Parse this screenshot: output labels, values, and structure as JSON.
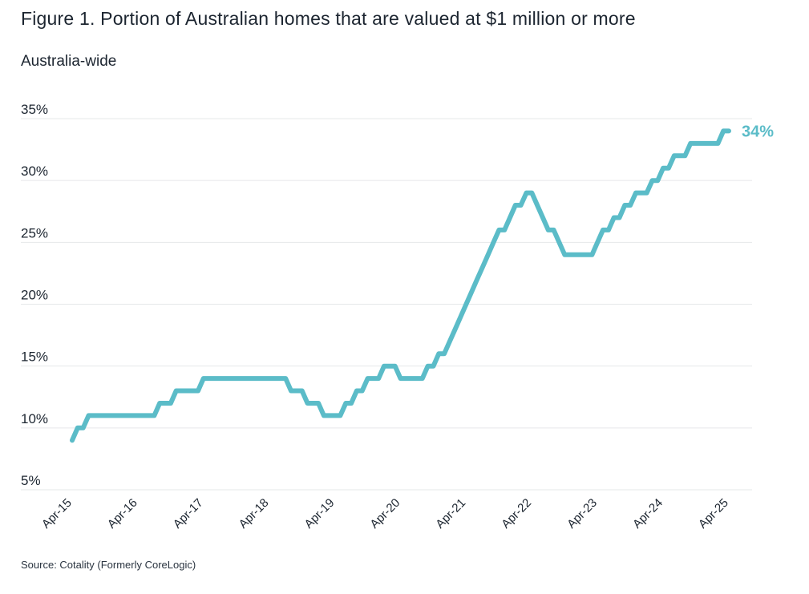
{
  "title": "Figure 1. Portion of Australian homes that are valued at $1 million or more",
  "subtitle": "Australia-wide",
  "source": "Source: Cotality (Formerly CoreLogic)",
  "colors": {
    "series": "#5bbcc8",
    "grid": "#e6e8ea",
    "text": "#1c2530"
  },
  "chart_data": {
    "type": "line",
    "title": "Figure 1. Portion of Australian homes that are valued at $1 million or more",
    "subtitle": "Australia-wide",
    "xlabel": "",
    "ylabel": "",
    "ylim": [
      5,
      35
    ],
    "yticks": [
      5,
      10,
      15,
      20,
      25,
      30,
      35
    ],
    "ytick_labels": [
      "5%",
      "10%",
      "15%",
      "20%",
      "25%",
      "30%",
      "35%"
    ],
    "xlim": [
      0,
      121
    ],
    "xticks": [
      0,
      12,
      24,
      36,
      48,
      60,
      72,
      84,
      96,
      108,
      120
    ],
    "xtick_labels": [
      "Apr-15",
      "Apr-16",
      "Apr-17",
      "Apr-18",
      "Apr-19",
      "Apr-20",
      "Apr-21",
      "Apr-22",
      "Apr-23",
      "Apr-24",
      "Apr-25"
    ],
    "grid": true,
    "end_label": "34%",
    "series": [
      {
        "name": "Australia-wide",
        "x_unit": "months since Apr-15",
        "points": [
          [
            0,
            9
          ],
          [
            1,
            10
          ],
          [
            2,
            10
          ],
          [
            3,
            11
          ],
          [
            4,
            11
          ],
          [
            5,
            11
          ],
          [
            6,
            11
          ],
          [
            7,
            11
          ],
          [
            8,
            11
          ],
          [
            9,
            11
          ],
          [
            10,
            11
          ],
          [
            11,
            11
          ],
          [
            12,
            11
          ],
          [
            13,
            11
          ],
          [
            14,
            11
          ],
          [
            15,
            11
          ],
          [
            16,
            12
          ],
          [
            17,
            12
          ],
          [
            18,
            12
          ],
          [
            19,
            13
          ],
          [
            20,
            13
          ],
          [
            21,
            13
          ],
          [
            22,
            13
          ],
          [
            23,
            13
          ],
          [
            24,
            14
          ],
          [
            25,
            14
          ],
          [
            26,
            14
          ],
          [
            27,
            14
          ],
          [
            28,
            14
          ],
          [
            29,
            14
          ],
          [
            30,
            14
          ],
          [
            31,
            14
          ],
          [
            32,
            14
          ],
          [
            33,
            14
          ],
          [
            34,
            14
          ],
          [
            35,
            14
          ],
          [
            36,
            14
          ],
          [
            37,
            14
          ],
          [
            38,
            14
          ],
          [
            39,
            14
          ],
          [
            40,
            13
          ],
          [
            41,
            13
          ],
          [
            42,
            13
          ],
          [
            43,
            12
          ],
          [
            44,
            12
          ],
          [
            45,
            12
          ],
          [
            46,
            11
          ],
          [
            47,
            11
          ],
          [
            48,
            11
          ],
          [
            49,
            11
          ],
          [
            50,
            12
          ],
          [
            51,
            12
          ],
          [
            52,
            13
          ],
          [
            53,
            13
          ],
          [
            54,
            14
          ],
          [
            55,
            14
          ],
          [
            56,
            14
          ],
          [
            57,
            15
          ],
          [
            58,
            15
          ],
          [
            59,
            15
          ],
          [
            60,
            14
          ],
          [
            61,
            14
          ],
          [
            62,
            14
          ],
          [
            63,
            14
          ],
          [
            64,
            14
          ],
          [
            65,
            15
          ],
          [
            66,
            15
          ],
          [
            67,
            16
          ],
          [
            68,
            16
          ],
          [
            69,
            17
          ],
          [
            70,
            18
          ],
          [
            71,
            19
          ],
          [
            72,
            20
          ],
          [
            73,
            21
          ],
          [
            74,
            22
          ],
          [
            75,
            23
          ],
          [
            76,
            24
          ],
          [
            77,
            25
          ],
          [
            78,
            26
          ],
          [
            79,
            26
          ],
          [
            80,
            27
          ],
          [
            81,
            28
          ],
          [
            82,
            28
          ],
          [
            83,
            29
          ],
          [
            84,
            29
          ],
          [
            85,
            28
          ],
          [
            86,
            27
          ],
          [
            87,
            26
          ],
          [
            88,
            26
          ],
          [
            89,
            25
          ],
          [
            90,
            24
          ],
          [
            91,
            24
          ],
          [
            92,
            24
          ],
          [
            93,
            24
          ],
          [
            94,
            24
          ],
          [
            95,
            24
          ],
          [
            96,
            25
          ],
          [
            97,
            26
          ],
          [
            98,
            26
          ],
          [
            99,
            27
          ],
          [
            100,
            27
          ],
          [
            101,
            28
          ],
          [
            102,
            28
          ],
          [
            103,
            29
          ],
          [
            104,
            29
          ],
          [
            105,
            29
          ],
          [
            106,
            30
          ],
          [
            107,
            30
          ],
          [
            108,
            31
          ],
          [
            109,
            31
          ],
          [
            110,
            32
          ],
          [
            111,
            32
          ],
          [
            112,
            32
          ],
          [
            113,
            33
          ],
          [
            114,
            33
          ],
          [
            115,
            33
          ],
          [
            116,
            33
          ],
          [
            117,
            33
          ],
          [
            118,
            33
          ],
          [
            119,
            34
          ],
          [
            120,
            34
          ]
        ]
      }
    ]
  }
}
